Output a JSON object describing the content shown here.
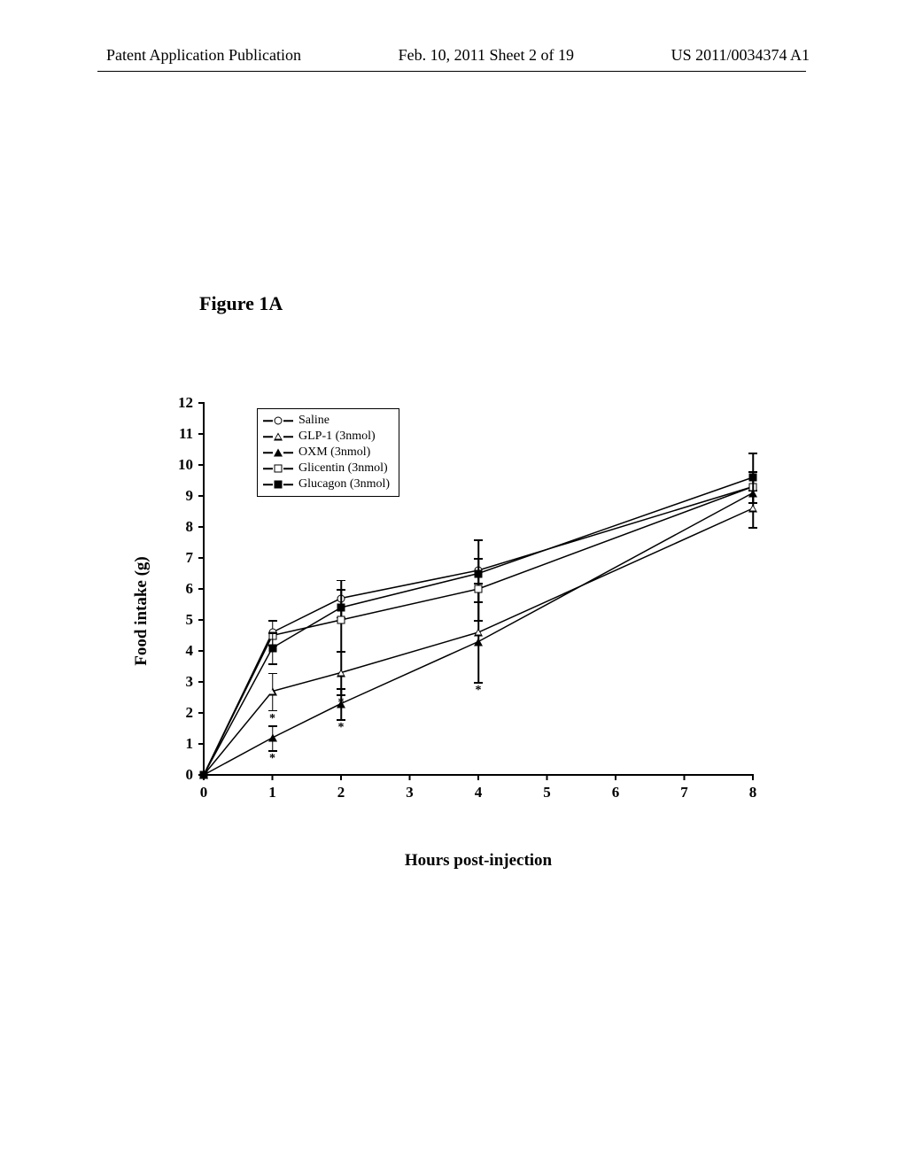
{
  "header": {
    "left": "Patent Application Publication",
    "center": "Feb. 10, 2011  Sheet 2 of 19",
    "right": "US 2011/0034374 A1"
  },
  "figure": {
    "title": "Figure 1A",
    "ylabel": "Food intake (g)",
    "xlabel": "Hours post-injection",
    "background_color": "#ffffff",
    "axis_color": "#000000",
    "line_color": "#000000",
    "xlim": [
      0,
      8
    ],
    "ylim": [
      0,
      12
    ],
    "xticks": [
      0,
      1,
      2,
      3,
      4,
      5,
      6,
      7,
      8
    ],
    "yticks": [
      0,
      1,
      2,
      3,
      4,
      5,
      6,
      7,
      8,
      9,
      10,
      11,
      12
    ],
    "tick_fontweight": "bold",
    "tick_fontsize": 17,
    "label_fontsize": 19,
    "label_fontweight": "bold",
    "title_fontsize": 22,
    "title_fontweight": "bold",
    "line_width": 1.5,
    "marker_size": 9,
    "errorbar_cap_width": 10,
    "series": [
      {
        "id": "saline",
        "label": "Saline",
        "marker": "circle-open",
        "x": [
          0,
          1,
          2,
          4,
          8
        ],
        "y": [
          0.0,
          4.6,
          5.7,
          6.6,
          9.3
        ],
        "err": [
          0,
          0.4,
          0.6,
          1.0,
          0.5
        ]
      },
      {
        "id": "glp1",
        "label": "GLP-1 (3nmol)",
        "marker": "triangle-open",
        "x": [
          0,
          1,
          2,
          4,
          8
        ],
        "y": [
          0.0,
          2.7,
          3.3,
          4.6,
          8.6
        ],
        "err": [
          0,
          0.6,
          0.7,
          1.6,
          0.6
        ],
        "sig": [
          false,
          true,
          true,
          true,
          false
        ]
      },
      {
        "id": "oxm",
        "label": "OXM (3nmol)",
        "marker": "triangle-filled",
        "x": [
          0,
          1,
          2,
          4,
          8
        ],
        "y": [
          0.0,
          1.2,
          2.3,
          4.3,
          9.1
        ],
        "err": [
          0,
          0.4,
          0.5,
          0,
          0
        ],
        "sig": [
          false,
          true,
          true,
          false,
          false
        ]
      },
      {
        "id": "glicentin",
        "label": "Glicentin (3nmol)",
        "marker": "square-open",
        "x": [
          0,
          1,
          2,
          4,
          8
        ],
        "y": [
          0.0,
          4.5,
          5.0,
          6.0,
          9.3
        ],
        "err": [
          0,
          0,
          1.0,
          1.0,
          0
        ]
      },
      {
        "id": "glucagon",
        "label": "Glucagon (3nmol)",
        "marker": "square-filled",
        "x": [
          0,
          1,
          2,
          4,
          8
        ],
        "y": [
          0.0,
          4.1,
          5.4,
          6.5,
          9.6
        ],
        "err": [
          0,
          0.5,
          0,
          0,
          0.8
        ]
      }
    ]
  }
}
